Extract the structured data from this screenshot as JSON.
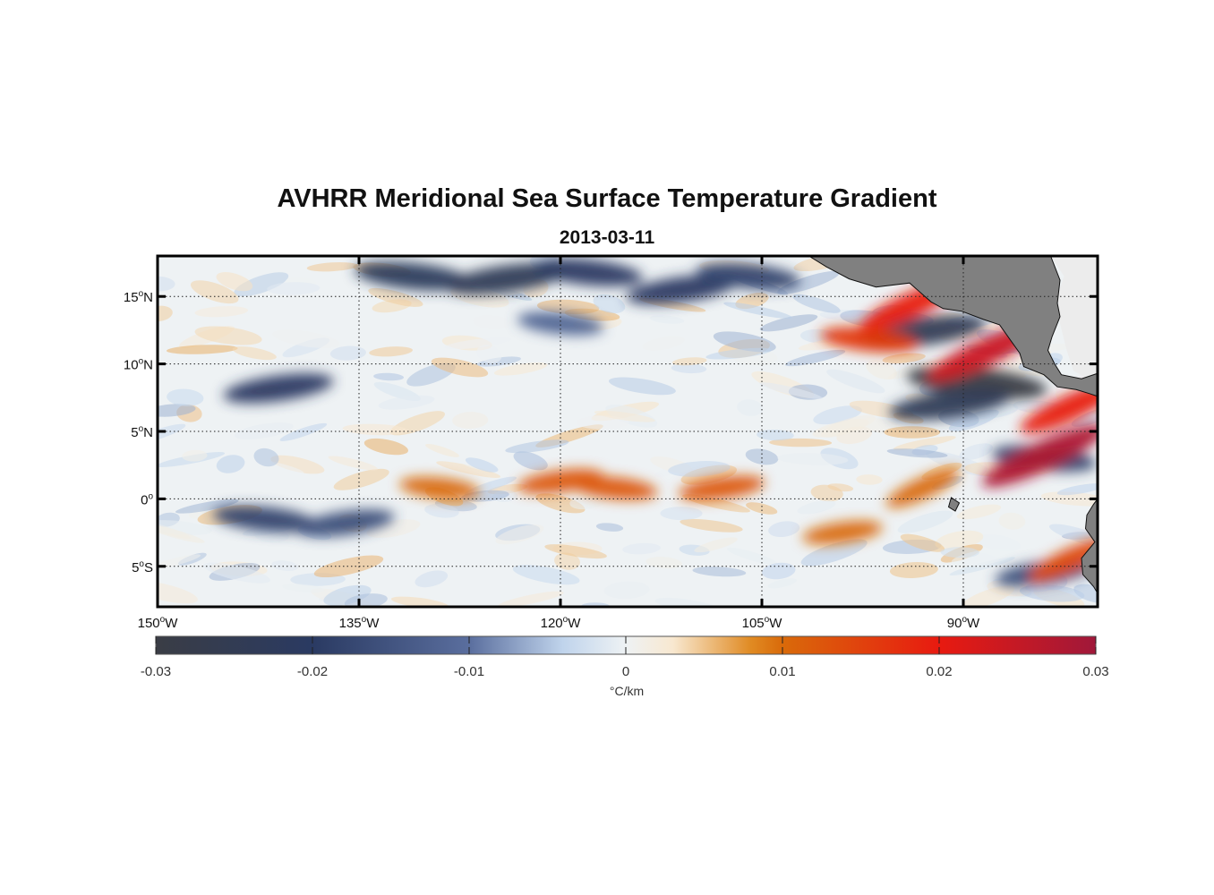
{
  "title": "AVHRR Meridional Sea Surface Temperature Gradient",
  "subtitle": "2013-03-11",
  "map": {
    "region": {
      "lon_min": -150,
      "lon_max": -80,
      "lat_min": -8,
      "lat_max": 18
    },
    "grid": "dotted",
    "land_color": "#808080",
    "nodata_color": "#ececec",
    "lon_ticks": [
      {
        "value": -150,
        "deg": "150",
        "hem": "W"
      },
      {
        "value": -135,
        "deg": "135",
        "hem": "W"
      },
      {
        "value": -120,
        "deg": "120",
        "hem": "W"
      },
      {
        "value": -105,
        "deg": "105",
        "hem": "W"
      },
      {
        "value": -90,
        "deg": "90",
        "hem": "W"
      }
    ],
    "lat_ticks": [
      {
        "value": 15,
        "deg": "15",
        "hem": "N"
      },
      {
        "value": 10,
        "deg": "10",
        "hem": "N"
      },
      {
        "value": 5,
        "deg": "5",
        "hem": "N"
      },
      {
        "value": 0,
        "deg": "0",
        "hem": ""
      },
      {
        "value": -5,
        "deg": "5",
        "hem": "S"
      }
    ],
    "features": [
      {
        "kind": "cold",
        "lon": -131,
        "lat": 16.5,
        "strength": -0.022
      },
      {
        "kind": "cold",
        "lon": -124,
        "lat": 16.3,
        "strength": -0.024
      },
      {
        "kind": "cold",
        "lon": -118,
        "lat": 16.8,
        "strength": -0.02
      },
      {
        "kind": "cold",
        "lon": -111,
        "lat": 15.5,
        "strength": -0.02
      },
      {
        "kind": "cold",
        "lon": -106,
        "lat": 16.5,
        "strength": -0.018
      },
      {
        "kind": "cold",
        "lon": -141,
        "lat": 8.2,
        "strength": -0.02
      },
      {
        "kind": "cold",
        "lon": -142,
        "lat": -1.5,
        "strength": -0.018
      },
      {
        "kind": "cold",
        "lon": -136,
        "lat": -1.8,
        "strength": -0.016
      },
      {
        "kind": "cold",
        "lon": -120,
        "lat": 13,
        "strength": -0.012
      },
      {
        "kind": "cold",
        "lon": -93,
        "lat": 12.4,
        "strength": -0.025
      },
      {
        "kind": "cold",
        "lon": -89,
        "lat": 8.6,
        "strength": -0.03
      },
      {
        "kind": "cold",
        "lon": -91,
        "lat": 7,
        "strength": -0.024
      },
      {
        "kind": "cold",
        "lon": -84,
        "lat": 3,
        "strength": -0.018
      },
      {
        "kind": "cold",
        "lon": -84,
        "lat": -5.5,
        "strength": -0.016
      },
      {
        "kind": "warm",
        "lon": -116,
        "lat": 0.8,
        "strength": 0.012
      },
      {
        "kind": "warm",
        "lon": -108,
        "lat": 0.8,
        "strength": 0.012
      },
      {
        "kind": "warm",
        "lon": -129,
        "lat": 0.8,
        "strength": 0.01
      },
      {
        "kind": "warm",
        "lon": -120,
        "lat": 1.3,
        "strength": 0.012
      },
      {
        "kind": "warm",
        "lon": -97,
        "lat": 11.8,
        "strength": 0.016
      },
      {
        "kind": "warm",
        "lon": -94,
        "lat": 14.3,
        "strength": 0.02
      },
      {
        "kind": "warm",
        "lon": -88.5,
        "lat": 10.8,
        "strength": 0.024
      },
      {
        "kind": "warm",
        "lon": -84,
        "lat": 3.2,
        "strength": 0.028
      },
      {
        "kind": "warm",
        "lon": -82,
        "lat": 6.8,
        "strength": 0.02
      },
      {
        "kind": "warm",
        "lon": -99,
        "lat": -2.5,
        "strength": 0.01
      },
      {
        "kind": "warm",
        "lon": -93,
        "lat": 0.8,
        "strength": 0.01
      },
      {
        "kind": "warm",
        "lon": -82,
        "lat": -4.5,
        "strength": 0.014
      }
    ]
  },
  "colorbar": {
    "min": -0.03,
    "max": 0.03,
    "units": "°C/km",
    "ticks": [
      "-0.03",
      "-0.02",
      "-0.01",
      "0",
      "0.01",
      "0.02",
      "0.03"
    ],
    "stops": [
      {
        "v": -0.03,
        "color": "#3a3d45"
      },
      {
        "v": -0.02,
        "color": "#2a3a62"
      },
      {
        "v": -0.01,
        "color": "#5a6e9e"
      },
      {
        "v": -0.004,
        "color": "#c0d4ec"
      },
      {
        "v": 0,
        "color": "#eef2f4"
      },
      {
        "v": 0.003,
        "color": "#f8e8d0"
      },
      {
        "v": 0.008,
        "color": "#e08a22"
      },
      {
        "v": 0.01,
        "color": "#d96a0a"
      },
      {
        "v": 0.02,
        "color": "#e81a10"
      },
      {
        "v": 0.03,
        "color": "#a0183a"
      }
    ]
  }
}
